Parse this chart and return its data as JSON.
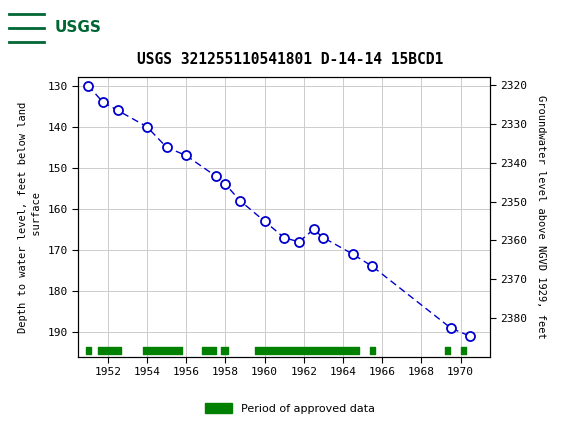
{
  "title": "USGS 321255110541801 D-14-14 15BCD1",
  "ylabel_left": "Depth to water level, feet below land\n surface",
  "ylabel_right": "Groundwater level above NGVD 1929, feet",
  "ylim_left": [
    128,
    196
  ],
  "ylim_right": [
    2318,
    2390
  ],
  "xlim": [
    1950.5,
    1971.5
  ],
  "yticks_left": [
    130,
    140,
    150,
    160,
    170,
    180,
    190
  ],
  "yticks_right": [
    2320,
    2330,
    2340,
    2350,
    2360,
    2370,
    2380
  ],
  "xticks": [
    1952,
    1954,
    1956,
    1958,
    1960,
    1962,
    1964,
    1966,
    1968,
    1970
  ],
  "data_x": [
    1951.0,
    1951.75,
    1952.5,
    1954.0,
    1955.0,
    1956.0,
    1957.5,
    1958.0,
    1958.75,
    1960.0,
    1961.0,
    1961.75,
    1962.5,
    1963.0,
    1964.5,
    1965.5,
    1969.5,
    1970.5
  ],
  "data_y": [
    130,
    134,
    136,
    140,
    145,
    147,
    152,
    154,
    158,
    163,
    167,
    168,
    165,
    167,
    171,
    174,
    189,
    191
  ],
  "line_color": "#0000cc",
  "marker_color": "#0000cc",
  "marker_facecolor": "white",
  "header_color": "#006633",
  "header_text_color": "white",
  "grid_color": "#cccccc",
  "green_bar_color": "#008000",
  "approved_periods": [
    [
      1950.9,
      1951.15
    ],
    [
      1951.5,
      1952.7
    ],
    [
      1953.8,
      1955.8
    ],
    [
      1956.8,
      1957.5
    ],
    [
      1957.8,
      1958.15
    ],
    [
      1959.5,
      1964.8
    ],
    [
      1965.4,
      1965.65
    ],
    [
      1969.2,
      1969.45
    ],
    [
      1970.0,
      1970.25
    ]
  ],
  "legend_label": "Period of approved data"
}
